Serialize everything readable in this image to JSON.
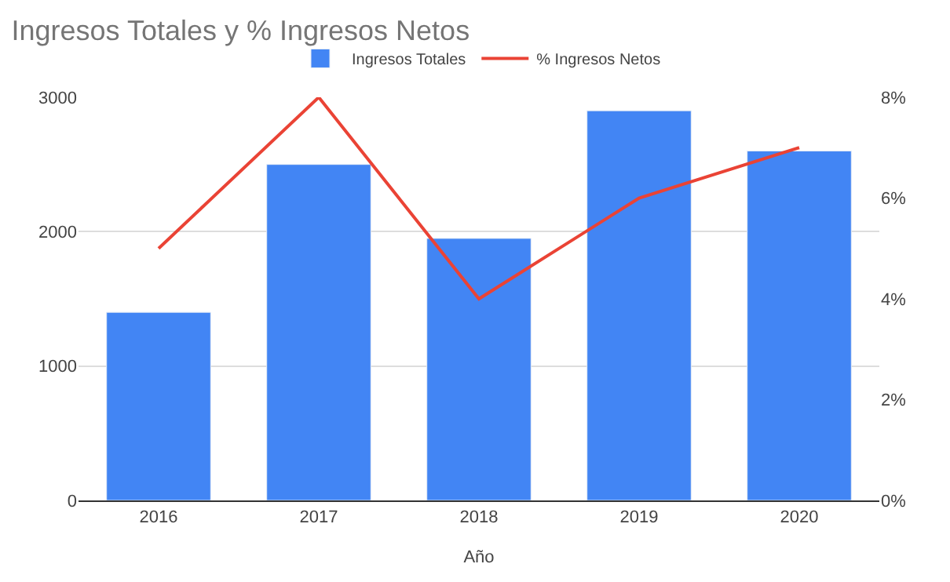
{
  "chart_data": {
    "type": "bar",
    "title": "Ingresos Totales y % Ingresos Netos",
    "xlabel": "Año",
    "categories": [
      "2016",
      "2017",
      "2018",
      "2019",
      "2020"
    ],
    "series": [
      {
        "name": "Ingresos Totales",
        "color": "#4285f4",
        "values": [
          1400,
          2500,
          1950,
          2900,
          2600
        ]
      },
      {
        "name": "% Ingresos Netos",
        "type": "line",
        "axis": "y2",
        "color": "#ea4335",
        "values": [
          5,
          8,
          4,
          6,
          7
        ]
      }
    ],
    "ylim": [
      0,
      3000
    ],
    "yticks": [
      0,
      1000,
      2000,
      3000
    ],
    "y2lim": [
      0,
      8
    ],
    "y2ticks": [
      {
        "value": 0,
        "label": "0%"
      },
      {
        "value": 2,
        "label": "2%"
      },
      {
        "value": 4,
        "label": "4%"
      },
      {
        "value": 6,
        "label": "6%"
      },
      {
        "value": 8,
        "label": "8%"
      }
    ],
    "grid": "y",
    "legend": "top",
    "marker": "none"
  }
}
